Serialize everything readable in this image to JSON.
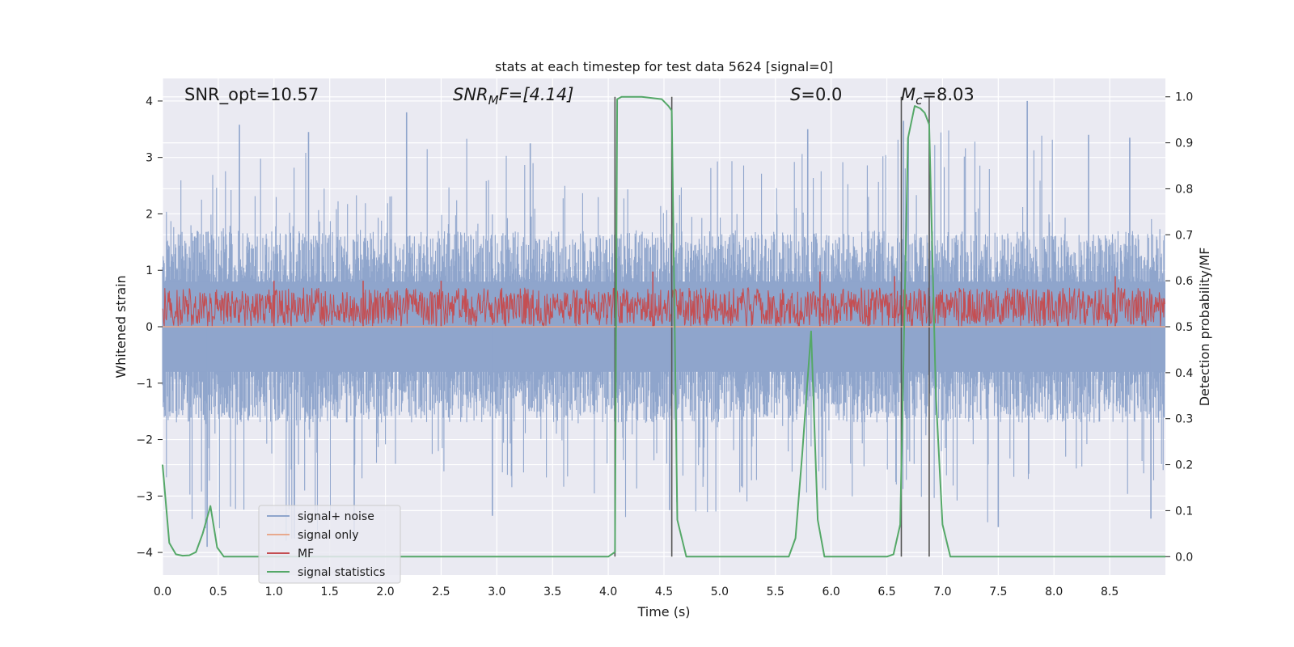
{
  "chart_data": {
    "type": "line",
    "title": "stats at each timestep for test data 5624 [signal=0]",
    "xlabel": "Time (s)",
    "ylabel_left": "Whitened strain",
    "ylabel_right": "Detection probability/MF",
    "xlim": [
      0.0,
      9.0
    ],
    "ylim_left": [
      -4.4,
      4.4
    ],
    "ylim_right": [
      -0.04,
      1.04
    ],
    "x_ticks": [
      0.0,
      0.5,
      1.0,
      1.5,
      2.0,
      2.5,
      3.0,
      3.5,
      4.0,
      4.5,
      5.0,
      5.5,
      6.0,
      6.5,
      7.0,
      7.5,
      8.0,
      8.5
    ],
    "x_tick_labels": [
      "0.0",
      "0.5",
      "1.0",
      "1.5",
      "2.0",
      "2.5",
      "3.0",
      "3.5",
      "4.0",
      "4.5",
      "5.0",
      "5.5",
      "6.0",
      "6.5",
      "7.0",
      "7.5",
      "8.0",
      "8.5"
    ],
    "y_left_ticks": [
      -4,
      -3,
      -2,
      -1,
      0,
      1,
      2,
      3,
      4
    ],
    "y_left_tick_labels": [
      "−4",
      "−3",
      "−2",
      "−1",
      "0",
      "1",
      "2",
      "3",
      "4"
    ],
    "y_right_ticks": [
      0.0,
      0.1,
      0.2,
      0.3,
      0.4,
      0.5,
      0.6,
      0.7,
      0.8,
      0.9,
      1.0
    ],
    "y_right_tick_labels": [
      "0.0",
      "0.1",
      "0.2",
      "0.3",
      "0.4",
      "0.5",
      "0.6",
      "0.7",
      "0.8",
      "0.9",
      "1.0"
    ],
    "grid": true,
    "legend_placement": "lower-left",
    "legend": [
      {
        "label": "signal+ noise",
        "color": "#8fa5cc"
      },
      {
        "label": "signal only",
        "color": "#e8a98e"
      },
      {
        "label": "MF",
        "color": "#c44e52"
      },
      {
        "label": "signal statistics",
        "color": "#55a868"
      }
    ],
    "annotations": {
      "snr_opt": "SNR_opt=10.57",
      "snr_mf_main": "SNR",
      "snr_mf_sub": "M",
      "snr_mf_tail": "F=[4.14]",
      "s_main": "S",
      "s_tail": "=0.0",
      "mc_main": "M",
      "mc_sub": "c",
      "mc_tail": "=8.03"
    },
    "vertical_lines_x": [
      4.06,
      4.57,
      6.63,
      6.88
    ],
    "vertical_lines_range_right": [
      0.0,
      1.0
    ],
    "series": [
      {
        "name": "signal+ noise",
        "axis": "left",
        "color": "#8fa5cc",
        "kind": "noise-band",
        "dt": 0.005,
        "upper_envelope_x": [
          0.0,
          0.5,
          1.0,
          1.5,
          2.0,
          2.5,
          3.0,
          3.5,
          4.0,
          4.5,
          5.0,
          5.5,
          6.0,
          6.5,
          7.0,
          7.5,
          8.0,
          8.5,
          9.0
        ],
        "upper_envelope_y": [
          2.6,
          2.8,
          3.6,
          2.9,
          3.0,
          3.5,
          3.2,
          2.8,
          2.4,
          2.6,
          3.0,
          2.8,
          3.6,
          3.3,
          3.5,
          3.3,
          3.6,
          3.3,
          2.7
        ],
        "lower_envelope_y": [
          -3.0,
          -4.0,
          -3.9,
          -3.8,
          -2.8,
          -3.1,
          -3.3,
          -3.0,
          -3.5,
          -3.3,
          -3.3,
          -3.0,
          -3.4,
          -3.3,
          -3.0,
          -3.6,
          -3.3,
          -3.6,
          -3.2
        ],
        "peak_markers": [
          {
            "x": 0.69,
            "y": 3.58
          },
          {
            "x": 1.31,
            "y": 3.45
          },
          {
            "x": 2.19,
            "y": 3.8
          },
          {
            "x": 3.3,
            "y": 3.25
          },
          {
            "x": 5.79,
            "y": 3.5
          },
          {
            "x": 6.65,
            "y": 3.65
          },
          {
            "x": 7.76,
            "y": 4.0
          },
          {
            "x": 8.31,
            "y": 3.4
          },
          {
            "x": 8.68,
            "y": 3.35
          },
          {
            "x": 0.4,
            "y": -3.9
          },
          {
            "x": 1.72,
            "y": -3.75
          },
          {
            "x": 2.96,
            "y": -3.35
          },
          {
            "x": 4.55,
            "y": -3.25
          },
          {
            "x": 7.5,
            "y": -3.55
          },
          {
            "x": 8.87,
            "y": -3.4
          }
        ]
      },
      {
        "name": "signal only",
        "axis": "left",
        "color": "#e8a98e",
        "x": [
          0.0,
          9.0
        ],
        "y": [
          0.0,
          0.0
        ]
      },
      {
        "name": "MF",
        "axis": "right",
        "color": "#c44e52",
        "kind": "noise-band",
        "dt": 0.005,
        "range": [
          0.5,
          0.6
        ],
        "peaks": [
          {
            "x": 1.0,
            "y": 0.6
          },
          {
            "x": 1.8,
            "y": 0.6
          },
          {
            "x": 2.5,
            "y": 0.6
          },
          {
            "x": 4.4,
            "y": 0.62
          },
          {
            "x": 5.9,
            "y": 0.62
          },
          {
            "x": 6.57,
            "y": 0.61
          },
          {
            "x": 8.55,
            "y": 0.61
          }
        ]
      },
      {
        "name": "signal statistics",
        "axis": "right",
        "color": "#55a868",
        "x": [
          0.0,
          0.06,
          0.12,
          0.18,
          0.24,
          0.3,
          0.36,
          0.43,
          0.49,
          0.55,
          0.62,
          4.0,
          4.06,
          4.08,
          4.12,
          4.2,
          4.3,
          4.48,
          4.54,
          4.57,
          4.62,
          4.7,
          5.62,
          5.68,
          5.74,
          5.82,
          5.88,
          5.94,
          6.0,
          6.5,
          6.56,
          6.62,
          6.69,
          6.75,
          6.8,
          6.84,
          6.88,
          6.94,
          7.0,
          7.07,
          9.0
        ],
        "y": [
          0.2,
          0.03,
          0.005,
          0.002,
          0.003,
          0.01,
          0.05,
          0.11,
          0.02,
          0.0,
          0.0,
          0.0,
          0.01,
          0.995,
          1.0,
          1.0,
          1.0,
          0.995,
          0.98,
          0.97,
          0.08,
          0.0,
          0.0,
          0.04,
          0.22,
          0.49,
          0.08,
          0.0,
          0.0,
          0.0,
          0.005,
          0.07,
          0.91,
          0.98,
          0.975,
          0.965,
          0.94,
          0.35,
          0.07,
          0.0,
          0.0
        ]
      }
    ]
  }
}
